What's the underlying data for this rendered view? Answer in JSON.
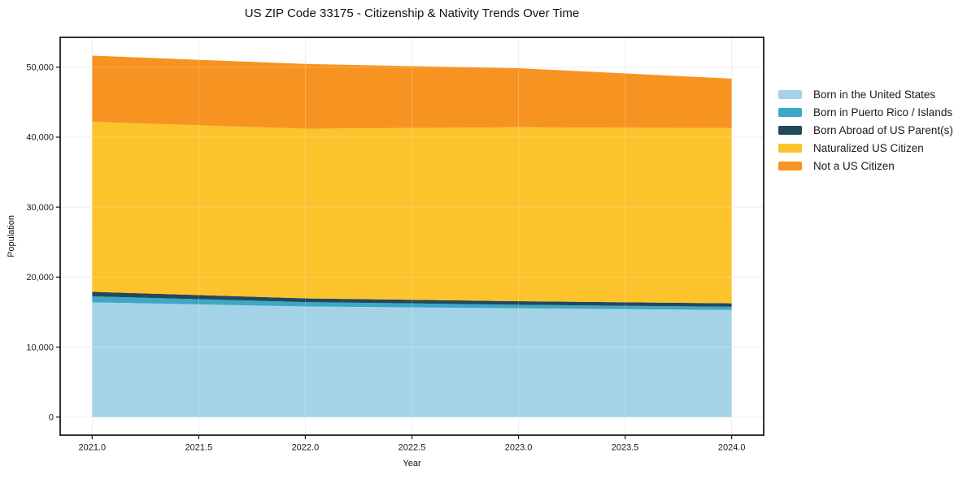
{
  "title": "US ZIP Code 33175 - Citizenship & Nativity Trends Over Time",
  "chart_data": {
    "type": "area",
    "stacked": true,
    "title": "US ZIP Code 33175 - Citizenship & Nativity Trends Over Time",
    "xlabel": "Year",
    "ylabel": "Population",
    "x": [
      2021,
      2022,
      2023,
      2024
    ],
    "series": [
      {
        "name": "Born in the United States",
        "color": "#a4d3e8",
        "values": [
          16400,
          15800,
          15550,
          15300
        ]
      },
      {
        "name": "Born in Puerto Rico / Islands",
        "color": "#3da7c6",
        "values": [
          850,
          630,
          500,
          460
        ]
      },
      {
        "name": "Born Abroad of US Parent(s)",
        "color": "#21495c",
        "values": [
          650,
          530,
          510,
          500
        ]
      },
      {
        "name": "Naturalized US Citizen",
        "color": "#fdc32c",
        "values": [
          24300,
          24250,
          24850,
          25050
        ]
      },
      {
        "name": "Not a US Citizen",
        "color": "#f79421",
        "values": [
          9450,
          9250,
          8450,
          7050
        ]
      }
    ],
    "totals": [
      51650,
      50460,
      49860,
      48360
    ],
    "xlim": [
      2020.85,
      2024.15
    ],
    "ylim": [
      -2584,
      54264
    ],
    "x_ticks": {
      "values": [
        2021.0,
        2021.5,
        2022.0,
        2022.5,
        2023.0,
        2023.5,
        2024.0
      ],
      "labels": [
        "2021.0",
        "2021.5",
        "2022.0",
        "2022.5",
        "2023.0",
        "2023.5",
        "2024.0"
      ]
    },
    "y_ticks": {
      "values": [
        0,
        10000,
        20000,
        30000,
        40000,
        50000
      ],
      "labels": [
        "0",
        "10,000",
        "20,000",
        "30,000",
        "40,000",
        "50,000"
      ]
    },
    "grid": true,
    "legend_position": "right"
  }
}
